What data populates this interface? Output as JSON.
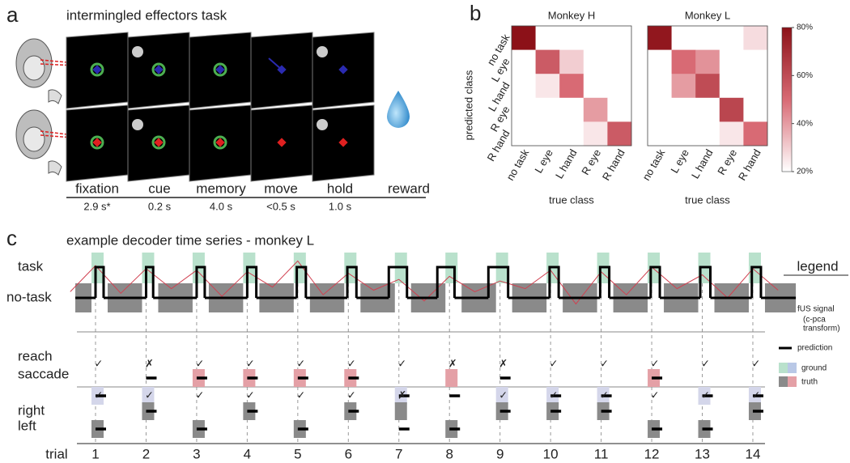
{
  "panel_a": {
    "label": "a",
    "title": "intermingled effectors task",
    "phases": [
      {
        "name": "fixation",
        "duration": "2.9 s*"
      },
      {
        "name": "cue",
        "duration": "0.2 s"
      },
      {
        "name": "memory",
        "duration": "4.0 s"
      },
      {
        "name": "move",
        "duration": "<0.5 s"
      },
      {
        "name": "hold",
        "duration": "1.0 s"
      }
    ],
    "reward": "reward"
  },
  "panel_b": {
    "label": "b",
    "y_label": "predicted class",
    "x_label": "true class",
    "classes": [
      "no task",
      "L eye",
      "L hand",
      "R eye",
      "R hand"
    ],
    "colorbar": {
      "clim": [
        20,
        80
      ],
      "ticks": [
        {
          "value": 20,
          "label": "20%"
        },
        {
          "value": 40,
          "label": "40%"
        },
        {
          "value": 60,
          "label": "60%"
        },
        {
          "value": 80,
          "label": "80%"
        }
      ]
    },
    "matrices": [
      {
        "title": "Monkey H",
        "values": [
          [
            80,
            20,
            20,
            20,
            20
          ],
          [
            20,
            55,
            30,
            20,
            20
          ],
          [
            20,
            25,
            50,
            20,
            20
          ],
          [
            20,
            20,
            20,
            40,
            20
          ],
          [
            20,
            20,
            20,
            25,
            55
          ]
        ]
      },
      {
        "title": "Monkey L",
        "values": [
          [
            78,
            20,
            20,
            20,
            27
          ],
          [
            20,
            50,
            42,
            20,
            20
          ],
          [
            20,
            40,
            60,
            20,
            20
          ],
          [
            20,
            20,
            20,
            62,
            20
          ],
          [
            20,
            20,
            20,
            25,
            50
          ]
        ]
      }
    ]
  },
  "panel_c": {
    "label": "c",
    "title": "example decoder time series - monkey L",
    "rows": {
      "task": "task",
      "no_task": "no-task",
      "reach": "reach",
      "saccade": "saccade",
      "right": "right",
      "left": "left"
    },
    "x_label": "trial",
    "legend": {
      "title": "legend",
      "signal": "fUS signal",
      "signal_note1": "(c-pca",
      "signal_note2": "transform)",
      "prediction": "prediction",
      "ground": "ground",
      "truth": "truth"
    },
    "marks": {
      "correct": "✓",
      "wrong": "✗"
    },
    "trials": [
      1,
      2,
      3,
      4,
      5,
      6,
      7,
      8,
      9,
      10,
      11,
      12,
      13,
      14
    ],
    "signal": {
      "x": [
        0.5,
        1,
        1.5,
        2,
        2.5,
        3,
        3.5,
        4,
        4.5,
        5,
        5.5,
        6,
        6.5,
        7,
        7.5,
        8,
        8.5,
        9,
        9.5,
        10,
        10.5,
        11,
        11.5,
        12,
        12.5,
        13,
        13.5,
        14,
        14.5
      ],
      "values": [
        0.2,
        1.05,
        0.15,
        0.95,
        0.3,
        0.9,
        0.05,
        0.85,
        0.35,
        1.2,
        0.1,
        0.8,
        0.25,
        0.6,
        -0.1,
        0.7,
        0.2,
        0.55,
        0.3,
        0.9,
        -0.2,
        0.85,
        0.1,
        1.0,
        0.3,
        0.75,
        0.0,
        0.95,
        0.25
      ]
    },
    "task_truth": [
      [
        0.92,
        1.16
      ],
      [
        1.92,
        2.16
      ],
      [
        2.92,
        3.16
      ],
      [
        3.92,
        4.16
      ],
      [
        4.92,
        5.16
      ],
      [
        5.92,
        6.16
      ],
      [
        6.92,
        7.16
      ],
      [
        7.92,
        8.16
      ],
      [
        8.92,
        9.16
      ],
      [
        9.92,
        10.16
      ],
      [
        10.92,
        11.16
      ],
      [
        11.92,
        12.16
      ],
      [
        12.92,
        13.16
      ],
      [
        13.92,
        14.16
      ]
    ],
    "task_prediction": [
      [
        1.0,
        1.16
      ],
      [
        2.0,
        2.14
      ],
      [
        3.0,
        3.16
      ],
      [
        4.0,
        4.18
      ],
      [
        4.98,
        5.16
      ],
      [
        5.98,
        6.16
      ],
      [
        6.8,
        7.16
      ],
      [
        7.76,
        8.1
      ],
      [
        8.77,
        9.16
      ],
      [
        9.98,
        10.16
      ],
      [
        10.98,
        11.16
      ],
      [
        11.98,
        12.16
      ],
      [
        12.96,
        13.16
      ],
      [
        13.98,
        14.16
      ]
    ],
    "effector_truth": [
      1,
      1,
      0,
      0,
      0,
      0,
      1,
      0,
      1,
      1,
      1,
      0,
      1,
      1
    ],
    "effector_pred": [
      1,
      0,
      0,
      0,
      0,
      0,
      1,
      1,
      0,
      1,
      1,
      0,
      1,
      1
    ],
    "effector_ok": [
      true,
      false,
      true,
      true,
      true,
      true,
      true,
      false,
      false,
      true,
      true,
      true,
      true,
      true
    ],
    "side_truth": [
      1,
      0,
      1,
      0,
      1,
      0,
      0,
      1,
      0,
      0,
      0,
      1,
      1,
      0
    ],
    "side_pred": [
      1,
      0,
      1,
      0,
      1,
      0,
      1,
      1,
      0,
      0,
      0,
      1,
      1,
      0
    ],
    "side_ok": [
      true,
      true,
      true,
      true,
      true,
      true,
      false,
      null,
      true,
      true,
      true,
      true,
      true,
      true
    ]
  }
}
